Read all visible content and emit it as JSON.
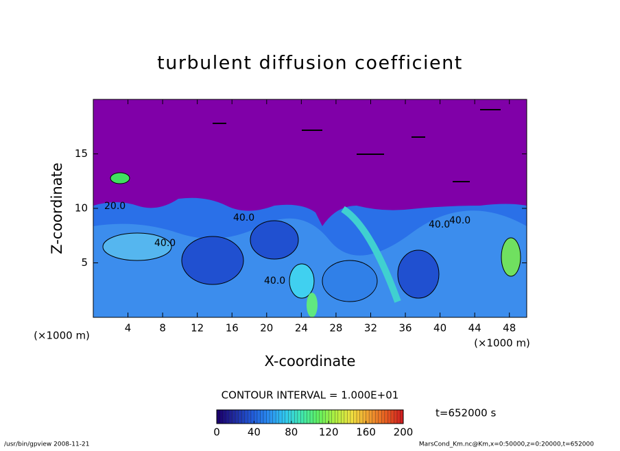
{
  "chart_data": {
    "type": "contour",
    "title": "turbulent diffusion coefficient",
    "x_label": "X-coordinate",
    "y_label": "Z-coordinate",
    "x_unit": "(×1000 m)",
    "xlim": [
      0,
      50
    ],
    "xticks": [
      4,
      8,
      12,
      16,
      20,
      24,
      28,
      32,
      36,
      40,
      44,
      48
    ],
    "ylim": [
      0,
      20
    ],
    "yticks": [
      5,
      10,
      15
    ],
    "contour_labels": [
      "20.0",
      "40.0",
      "40.0",
      "40.0",
      "40.0",
      "40.0"
    ],
    "contour_interval": "CONTOUR INTERVAL = 1.000E+01",
    "time_label": "t=652000 s",
    "colorbar": {
      "clim": [
        0,
        200
      ],
      "ticks": [
        0,
        40,
        80,
        120,
        160,
        200
      ],
      "colors": [
        "#1a006e",
        "#1f2ca0",
        "#2058d8",
        "#2a8cf0",
        "#30c8f0",
        "#40e8b0",
        "#60f060",
        "#b0f040",
        "#f0e040",
        "#f0a030",
        "#e86020",
        "#d02020"
      ]
    },
    "footer_left": "/usr/bin/gpview   2008-11-21",
    "footer_right": "MarsCond_Km.nc@Km,x=0:50000,z=0:20000,t=652000"
  }
}
